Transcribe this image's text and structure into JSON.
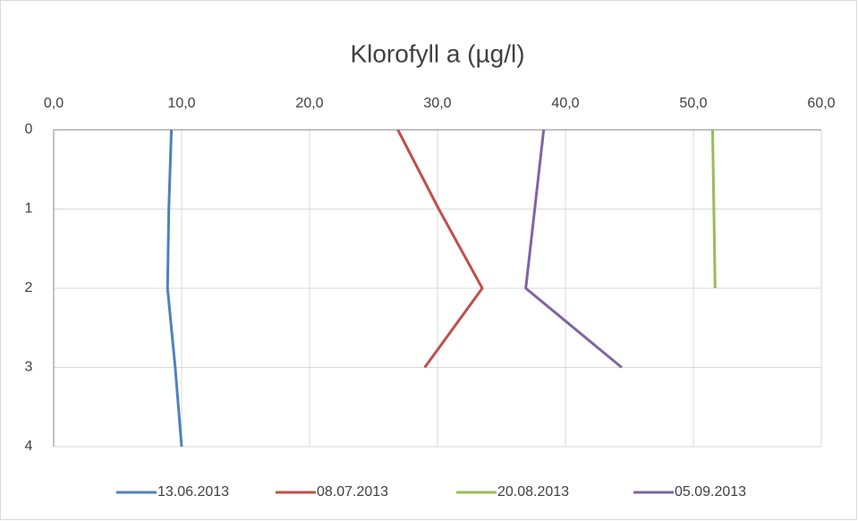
{
  "chart_data": {
    "type": "line",
    "orientation": "vertical-profile",
    "title": "Klorofyll a (µg/l)",
    "categories": [
      "0",
      "1",
      "2",
      "3",
      "4"
    ],
    "series": [
      {
        "name": "13.06.2013",
        "color": "#4f81bd",
        "values": [
          9.2,
          9.0,
          8.9,
          9.5,
          10.0
        ]
      },
      {
        "name": "08.07.2013",
        "color": "#c0504d",
        "values": [
          26.9,
          30.1,
          33.5,
          29.0,
          null
        ]
      },
      {
        "name": "20.08.2013",
        "color": "#9bbb59",
        "values": [
          51.5,
          51.6,
          51.7,
          null,
          null
        ]
      },
      {
        "name": "05.09.2013",
        "color": "#8064a2",
        "values": [
          38.3,
          37.6,
          36.9,
          44.4,
          null
        ]
      }
    ],
    "xlim": [
      0,
      60
    ],
    "xticks": [
      {
        "value": 0,
        "label": "0,0"
      },
      {
        "value": 10,
        "label": "10,0"
      },
      {
        "value": 20,
        "label": "20,0"
      },
      {
        "value": 30,
        "label": "30,0"
      },
      {
        "value": 40,
        "label": "40,0"
      },
      {
        "value": 50,
        "label": "50,0"
      },
      {
        "value": 60,
        "label": "60,0"
      }
    ],
    "grid": true,
    "legend": "bottom"
  }
}
